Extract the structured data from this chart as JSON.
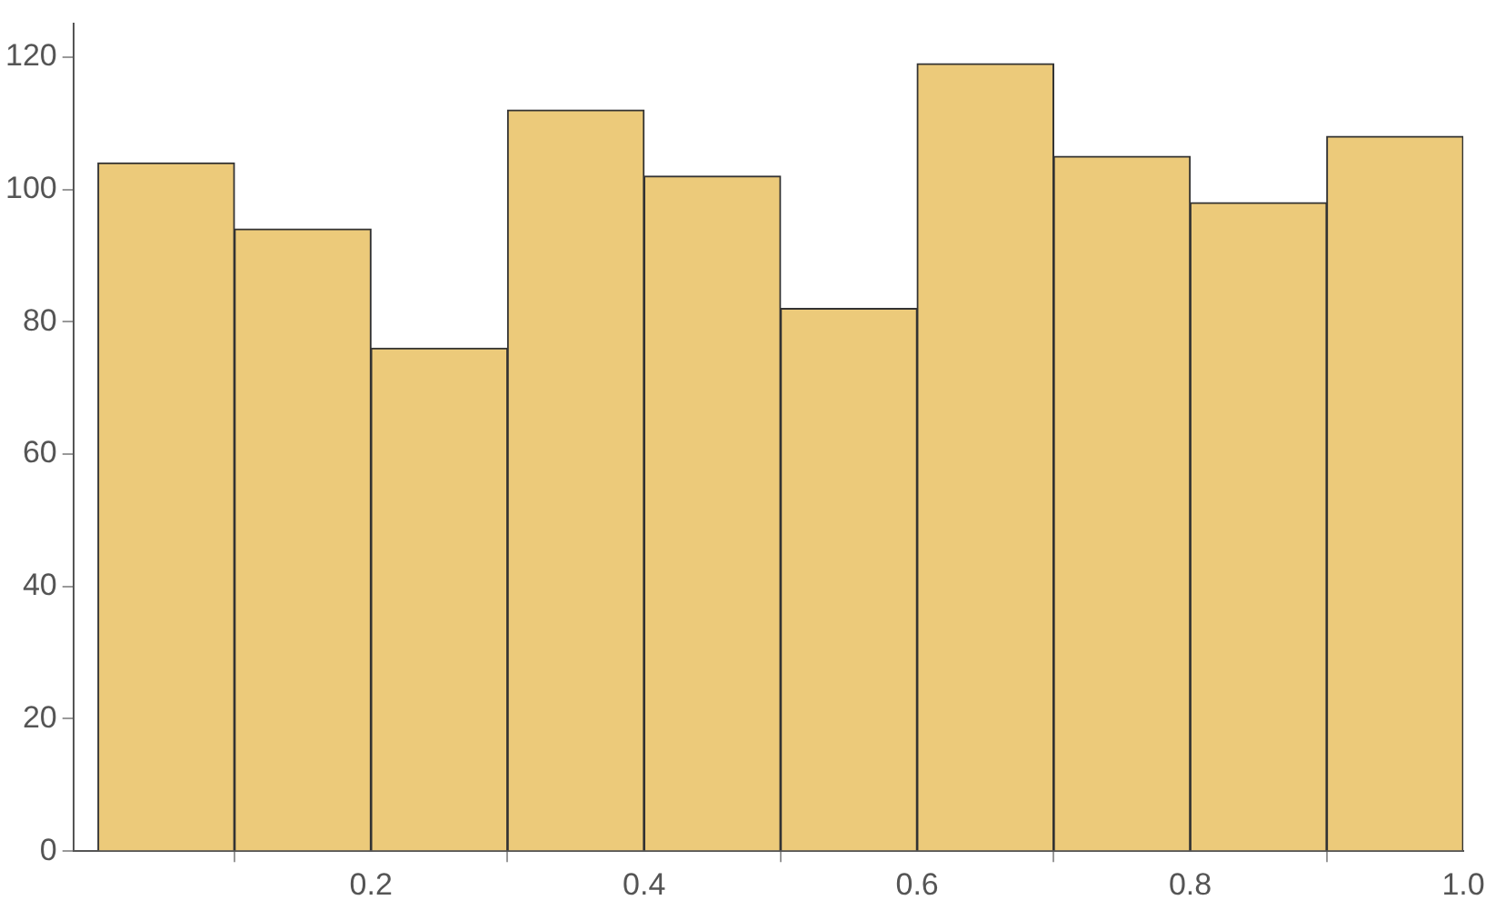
{
  "chart_data": {
    "type": "histogram",
    "bins": [
      0,
      0.1,
      0.2,
      0.3,
      0.4,
      0.5,
      0.6,
      0.7,
      0.8,
      0.9,
      1.0
    ],
    "values": [
      104,
      94,
      76,
      112,
      102,
      82,
      119,
      105,
      98,
      108
    ],
    "color": "#ecca7a",
    "xlim": [
      -0.018,
      1.0
    ],
    "xticks": [
      0.2,
      0.4,
      0.6,
      0.8,
      {
        "value": 1,
        "label": "1.0"
      }
    ],
    "ylim": [
      0,
      125
    ],
    "yticks": [
      0,
      20,
      40,
      60,
      80,
      100,
      120
    ],
    "grid": false,
    "legend": false
  }
}
